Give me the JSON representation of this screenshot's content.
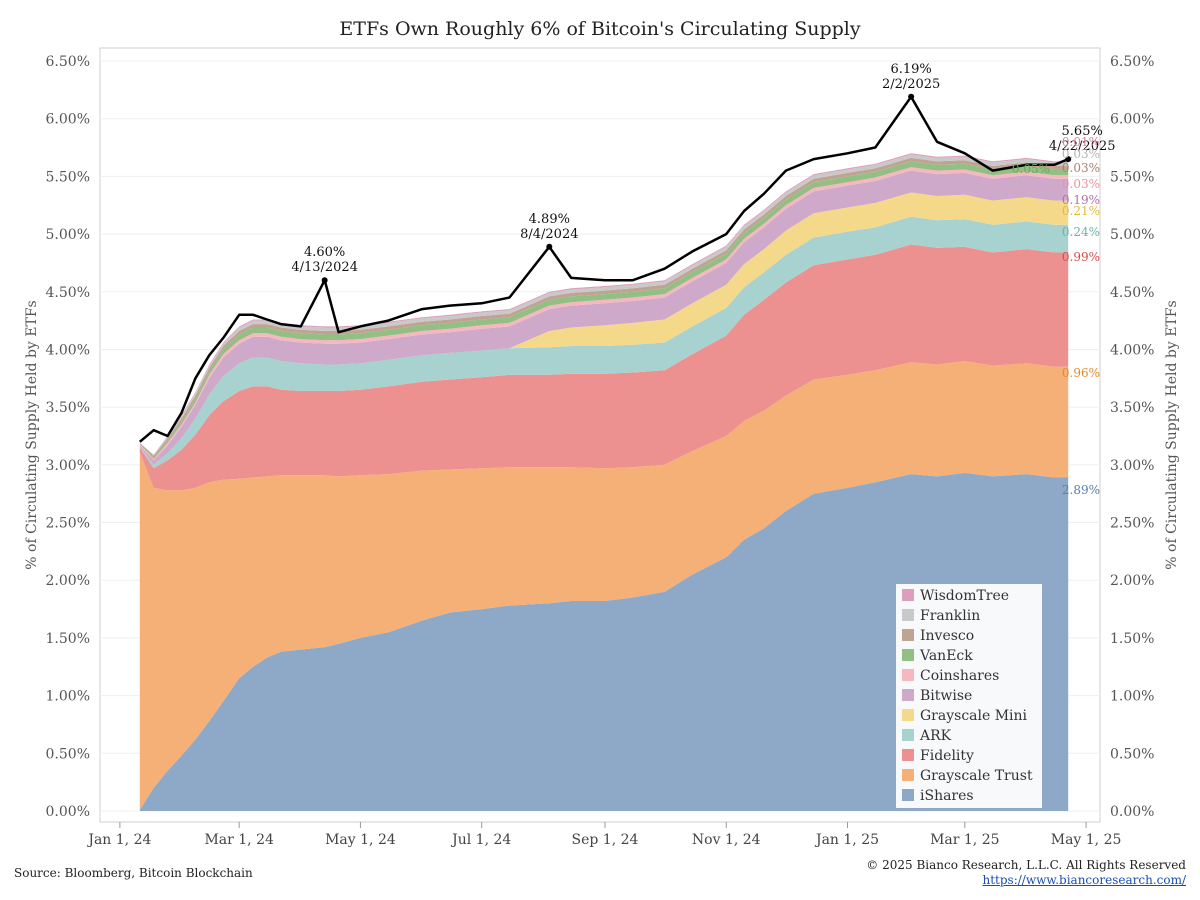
{
  "title": "ETFs Own Roughly 6% of Bitcoin's Circulating Supply",
  "source": "Source: Bloomberg, Bitcoin Blockchain",
  "copyright": "© 2025 Bianco Research, L.L.C. All Rights Reserved",
  "url": "https://www.biancoresearch.com/",
  "chart_data": {
    "type": "area",
    "ylabel": "% of Circulating Supply Held by ETFs",
    "ylim": [
      0,
      6.5
    ],
    "y_ticks": [
      "0.00%",
      "0.50%",
      "1.00%",
      "1.50%",
      "2.00%",
      "2.50%",
      "3.00%",
      "3.50%",
      "4.00%",
      "4.50%",
      "5.00%",
      "5.50%",
      "6.00%",
      "6.50%"
    ],
    "x_ticks": [
      "Jan 1, 24",
      "Mar 1, 24",
      "May 1, 24",
      "Jul 1, 24",
      "Sep 1, 24",
      "Nov 1, 24",
      "Jan 1, 25",
      "Mar 1, 25",
      "May 1, 25"
    ],
    "x_tick_dates": [
      "2024-01-01",
      "2024-03-01",
      "2024-05-01",
      "2024-07-01",
      "2024-09-01",
      "2024-11-01",
      "2025-01-01",
      "2025-03-01",
      "2025-05-01"
    ],
    "x_range": [
      "2023-12-22",
      "2025-05-08"
    ],
    "dates": [
      "2024-01-11",
      "2024-01-18",
      "2024-01-25",
      "2024-02-01",
      "2024-02-08",
      "2024-02-15",
      "2024-02-22",
      "2024-03-01",
      "2024-03-08",
      "2024-03-15",
      "2024-03-22",
      "2024-04-01",
      "2024-04-13",
      "2024-04-20",
      "2024-05-01",
      "2024-05-15",
      "2024-06-01",
      "2024-06-15",
      "2024-07-01",
      "2024-07-15",
      "2024-08-04",
      "2024-08-15",
      "2024-09-01",
      "2024-09-15",
      "2024-10-01",
      "2024-10-15",
      "2024-11-01",
      "2024-11-10",
      "2024-11-20",
      "2024-12-01",
      "2024-12-15",
      "2025-01-01",
      "2025-01-15",
      "2025-02-02",
      "2025-02-15",
      "2025-03-01",
      "2025-03-15",
      "2025-04-01",
      "2025-04-15",
      "2025-04-22"
    ],
    "series": [
      {
        "name": "iShares",
        "color": "#8ea9c8",
        "values": [
          0.01,
          0.2,
          0.35,
          0.48,
          0.62,
          0.78,
          0.95,
          1.15,
          1.25,
          1.33,
          1.38,
          1.4,
          1.42,
          1.45,
          1.5,
          1.55,
          1.65,
          1.72,
          1.75,
          1.78,
          1.8,
          1.82,
          1.82,
          1.85,
          1.9,
          2.05,
          2.2,
          2.35,
          2.45,
          2.6,
          2.75,
          2.8,
          2.85,
          2.92,
          2.9,
          2.93,
          2.9,
          2.92,
          2.89,
          2.89
        ]
      },
      {
        "name": "Grayscale Trust",
        "color": "#f4b076",
        "values": [
          3.1,
          2.6,
          2.43,
          2.3,
          2.18,
          2.07,
          1.92,
          1.73,
          1.64,
          1.57,
          1.53,
          1.51,
          1.49,
          1.45,
          1.41,
          1.37,
          1.3,
          1.24,
          1.22,
          1.2,
          1.18,
          1.16,
          1.15,
          1.13,
          1.1,
          1.07,
          1.05,
          1.03,
          1.02,
          1.0,
          0.99,
          0.98,
          0.97,
          0.97,
          0.97,
          0.97,
          0.96,
          0.96,
          0.96,
          0.96
        ]
      },
      {
        "name": "Fidelity",
        "color": "#ec9190",
        "values": [
          0.04,
          0.17,
          0.26,
          0.35,
          0.46,
          0.58,
          0.68,
          0.76,
          0.79,
          0.78,
          0.74,
          0.73,
          0.73,
          0.74,
          0.74,
          0.76,
          0.77,
          0.78,
          0.79,
          0.8,
          0.8,
          0.81,
          0.82,
          0.82,
          0.82,
          0.84,
          0.87,
          0.92,
          0.96,
          0.98,
          0.99,
          1.0,
          1.0,
          1.02,
          1.01,
          0.99,
          0.98,
          0.99,
          0.99,
          0.99
        ]
      },
      {
        "name": "ARK",
        "color": "#a7d2d0",
        "values": [
          0.01,
          0.03,
          0.06,
          0.1,
          0.14,
          0.18,
          0.22,
          0.24,
          0.25,
          0.25,
          0.25,
          0.24,
          0.23,
          0.23,
          0.23,
          0.23,
          0.23,
          0.23,
          0.23,
          0.23,
          0.24,
          0.24,
          0.24,
          0.24,
          0.24,
          0.24,
          0.24,
          0.24,
          0.24,
          0.24,
          0.24,
          0.24,
          0.24,
          0.24,
          0.24,
          0.24,
          0.24,
          0.24,
          0.24,
          0.24
        ]
      },
      {
        "name": "Grayscale Mini",
        "color": "#f5d98b",
        "values": [
          0,
          0,
          0,
          0,
          0,
          0,
          0,
          0,
          0,
          0,
          0,
          0,
          0,
          0,
          0,
          0,
          0,
          0,
          0,
          0,
          0.14,
          0.16,
          0.18,
          0.19,
          0.2,
          0.2,
          0.2,
          0.2,
          0.2,
          0.21,
          0.21,
          0.21,
          0.21,
          0.21,
          0.21,
          0.21,
          0.21,
          0.21,
          0.21,
          0.21
        ]
      },
      {
        "name": "Bitwise",
        "color": "#cfa9c9",
        "values": [
          0.01,
          0.04,
          0.07,
          0.1,
          0.12,
          0.14,
          0.16,
          0.17,
          0.18,
          0.18,
          0.18,
          0.18,
          0.18,
          0.18,
          0.18,
          0.18,
          0.18,
          0.18,
          0.19,
          0.19,
          0.19,
          0.19,
          0.19,
          0.19,
          0.19,
          0.19,
          0.19,
          0.19,
          0.19,
          0.19,
          0.19,
          0.19,
          0.19,
          0.19,
          0.19,
          0.19,
          0.19,
          0.19,
          0.19,
          0.19
        ]
      },
      {
        "name": "Coinshares",
        "color": "#f7b7c0",
        "values": [
          0.01,
          0.01,
          0.02,
          0.02,
          0.02,
          0.03,
          0.03,
          0.03,
          0.03,
          0.03,
          0.03,
          0.03,
          0.03,
          0.03,
          0.03,
          0.03,
          0.03,
          0.03,
          0.03,
          0.03,
          0.03,
          0.03,
          0.03,
          0.03,
          0.03,
          0.03,
          0.03,
          0.03,
          0.03,
          0.03,
          0.03,
          0.03,
          0.03,
          0.03,
          0.03,
          0.03,
          0.03,
          0.03,
          0.03,
          0.03
        ]
      },
      {
        "name": "VanEck",
        "color": "#93bf85",
        "values": [
          0.0,
          0.01,
          0.02,
          0.02,
          0.03,
          0.03,
          0.04,
          0.05,
          0.05,
          0.05,
          0.05,
          0.05,
          0.05,
          0.05,
          0.05,
          0.05,
          0.05,
          0.05,
          0.05,
          0.05,
          0.05,
          0.05,
          0.05,
          0.05,
          0.05,
          0.05,
          0.05,
          0.05,
          0.05,
          0.05,
          0.05,
          0.05,
          0.05,
          0.05,
          0.05,
          0.05,
          0.05,
          0.05,
          0.05,
          0.05
        ]
      },
      {
        "name": "Invesco",
        "color": "#bfa393",
        "values": [
          0.01,
          0.02,
          0.02,
          0.03,
          0.03,
          0.03,
          0.03,
          0.03,
          0.03,
          0.03,
          0.03,
          0.03,
          0.03,
          0.03,
          0.03,
          0.03,
          0.03,
          0.03,
          0.03,
          0.03,
          0.03,
          0.03,
          0.03,
          0.03,
          0.03,
          0.03,
          0.03,
          0.03,
          0.03,
          0.03,
          0.03,
          0.03,
          0.03,
          0.03,
          0.03,
          0.03,
          0.03,
          0.03,
          0.03,
          0.03
        ]
      },
      {
        "name": "Franklin",
        "color": "#c9c9c9",
        "values": [
          0.0,
          0.01,
          0.01,
          0.02,
          0.02,
          0.02,
          0.02,
          0.03,
          0.03,
          0.03,
          0.03,
          0.03,
          0.03,
          0.03,
          0.03,
          0.03,
          0.03,
          0.03,
          0.03,
          0.03,
          0.03,
          0.03,
          0.03,
          0.03,
          0.03,
          0.03,
          0.03,
          0.03,
          0.03,
          0.03,
          0.03,
          0.03,
          0.03,
          0.03,
          0.03,
          0.03,
          0.03,
          0.03,
          0.03,
          0.03
        ]
      },
      {
        "name": "WisdomTree",
        "color": "#dd9ebd",
        "values": [
          0.0,
          0.0,
          0.01,
          0.01,
          0.01,
          0.01,
          0.01,
          0.01,
          0.01,
          0.01,
          0.01,
          0.01,
          0.01,
          0.01,
          0.01,
          0.01,
          0.01,
          0.01,
          0.01,
          0.01,
          0.01,
          0.01,
          0.01,
          0.01,
          0.01,
          0.01,
          0.01,
          0.01,
          0.01,
          0.01,
          0.01,
          0.01,
          0.01,
          0.01,
          0.01,
          0.01,
          0.01,
          0.01,
          0.01,
          0.01
        ]
      }
    ],
    "total": [
      3.2,
      3.3,
      3.25,
      3.45,
      3.75,
      3.95,
      4.1,
      4.3,
      4.3,
      4.26,
      4.22,
      4.2,
      4.6,
      4.15,
      4.2,
      4.25,
      4.35,
      4.38,
      4.4,
      4.45,
      4.89,
      4.62,
      4.6,
      4.6,
      4.7,
      4.85,
      5.0,
      5.2,
      5.35,
      5.55,
      5.65,
      5.7,
      5.75,
      6.19,
      5.8,
      5.7,
      5.55,
      5.6,
      5.6,
      5.65
    ],
    "end_labels": [
      {
        "series": "WisdomTree",
        "label": "0.01%",
        "color": "#dd7fa6"
      },
      {
        "series": "Franklin",
        "label": "0.03%",
        "color": "#b5b5b5"
      },
      {
        "series": "Invesco",
        "label": "0.03%",
        "color": "#a8826f"
      },
      {
        "series": "Coinshares",
        "label": "0.03%",
        "color": "#f08fa0"
      },
      {
        "series": "VanEck",
        "label": "0.05%",
        "color": "#6aa85a"
      },
      {
        "series": "Bitwise",
        "label": "0.19%",
        "color": "#b46fa8"
      },
      {
        "series": "Grayscale Mini",
        "label": "0.21%",
        "color": "#e0bb3a"
      },
      {
        "series": "ARK",
        "label": "0.24%",
        "color": "#6fb3ad"
      },
      {
        "series": "Fidelity",
        "label": "0.99%",
        "color": "#d94a4a"
      },
      {
        "series": "Grayscale Trust",
        "label": "0.96%",
        "color": "#e08b30"
      },
      {
        "series": "iShares",
        "label": "2.89%",
        "color": "#5a7fa8"
      }
    ],
    "annotations": [
      {
        "date": "2024-04-13",
        "value": 4.6,
        "pct": "4.60%",
        "label": "4/13/2024"
      },
      {
        "date": "2024-08-04",
        "value": 4.89,
        "pct": "4.89%",
        "label": "8/4/2024"
      },
      {
        "date": "2025-02-02",
        "value": 6.19,
        "pct": "6.19%",
        "label": "2/2/2025"
      },
      {
        "date": "2025-04-22",
        "value": 5.65,
        "pct": "5.65%",
        "label": "4/22/2025"
      }
    ],
    "legend_position": "bottom-right",
    "grid": true
  }
}
